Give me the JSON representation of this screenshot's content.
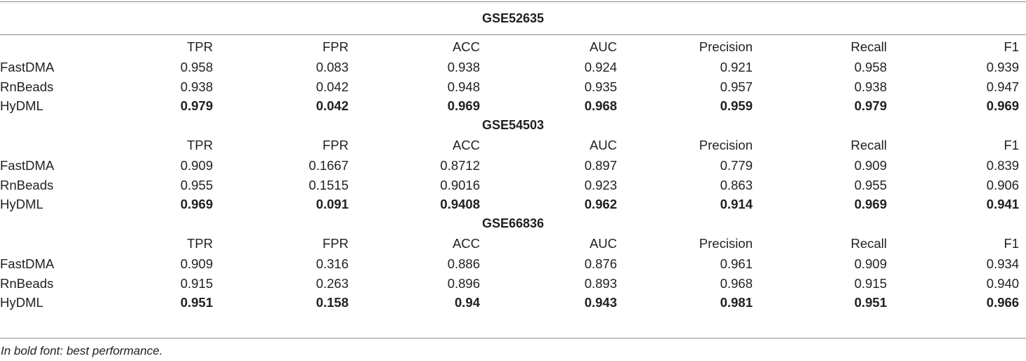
{
  "table": {
    "columns": [
      "",
      "TPR",
      "FPR",
      "ACC",
      "AUC",
      "Precision",
      "Recall",
      "F1"
    ],
    "sections": [
      {
        "title": "GSE52635",
        "rows": [
          {
            "label": "FastDMA",
            "values": [
              "0.958",
              "0.083",
              "0.938",
              "0.924",
              "0.921",
              "0.958",
              "0.939"
            ]
          },
          {
            "label": "RnBeads",
            "values": [
              "0.938",
              "0.042",
              "0.948",
              "0.935",
              "0.957",
              "0.938",
              "0.947"
            ]
          },
          {
            "label": "HyDML",
            "values": [
              "0.979",
              "0.042",
              "0.969",
              "0.968",
              "0.959",
              "0.979",
              "0.969"
            ]
          }
        ]
      },
      {
        "title": "GSE54503",
        "rows": [
          {
            "label": "FastDMA",
            "values": [
              "0.909",
              "0.1667",
              "0.8712",
              "0.897",
              "0.779",
              "0.909",
              "0.839"
            ]
          },
          {
            "label": "RnBeads",
            "values": [
              "0.955",
              "0.1515",
              "0.9016",
              "0.923",
              "0.863",
              "0.955",
              "0.906"
            ]
          },
          {
            "label": "HyDML",
            "values": [
              "0.969",
              "0.091",
              "0.9408",
              "0.962",
              "0.914",
              "0.969",
              "0.941"
            ]
          }
        ]
      },
      {
        "title": "GSE66836",
        "rows": [
          {
            "label": "FastDMA",
            "values": [
              "0.909",
              "0.316",
              "0.886",
              "0.876",
              "0.961",
              "0.909",
              "0.934"
            ]
          },
          {
            "label": "RnBeads",
            "values": [
              "0.915",
              "0.263",
              "0.896",
              "0.893",
              "0.968",
              "0.915",
              "0.940"
            ]
          },
          {
            "label": "HyDML",
            "values": [
              "0.951",
              "0.158",
              "0.94",
              "0.943",
              "0.981",
              "0.951",
              "0.966"
            ]
          }
        ]
      }
    ]
  },
  "footnote": "In bold font: best performance."
}
